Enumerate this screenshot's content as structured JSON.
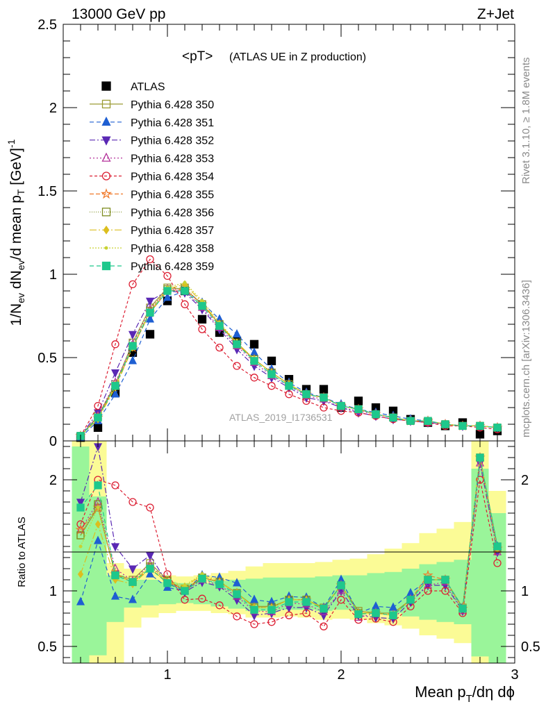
{
  "header": {
    "left": "13000 GeV pp",
    "right": "Z+Jet",
    "plot_title": "<pT>",
    "plot_subtitle": "(ATLAS UE in Z production)",
    "watermark": "ATLAS_2019_I1736531",
    "rivet_label": "Rivet 3.1.10, ≥ 1.8M events",
    "mcplots_label": "mcplots.cern.ch [arXiv:1306.3436]"
  },
  "axes": {
    "ylabel_main": "1/N_ev dN_ev/d mean p_T [GeV]^-1",
    "ylabel_ratio": "Ratio to ATLAS",
    "xlabel": "Mean p_T/dη dϕ"
  },
  "colors": {
    "band_inner": "#9af59a",
    "band_outer": "#fbfb96"
  },
  "chart_data": [
    {
      "type": "scatter",
      "panel": "main",
      "xlim": [
        0.4,
        3.0
      ],
      "ylim": [
        0,
        2.5
      ],
      "yticks": [
        "0",
        "0.5",
        "1",
        "1.5",
        "2",
        "2.5"
      ],
      "x": [
        0.5,
        0.6,
        0.7,
        0.8,
        0.9,
        1.0,
        1.1,
        1.2,
        1.3,
        1.4,
        1.5,
        1.6,
        1.7,
        1.8,
        1.9,
        2.0,
        2.1,
        2.2,
        2.3,
        2.4,
        2.5,
        2.6,
        2.7,
        2.8,
        2.9
      ],
      "series": [
        {
          "name": "ATLAS",
          "color": "#000000",
          "marker": "fsquare",
          "dash": "none",
          "values": [
            0.02,
            0.08,
            0.29,
            0.53,
            0.64,
            0.84,
            0.9,
            0.73,
            0.65,
            0.6,
            0.58,
            0.48,
            0.37,
            0.31,
            0.31,
            0.2,
            0.24,
            0.2,
            0.18,
            0.13,
            0.11,
            0.09,
            0.11,
            0.04,
            0.06
          ]
        },
        {
          "name": "Pythia 6.428 350",
          "color": "#9b9b32",
          "marker": "osquare",
          "dash": "solid",
          "values": [
            0.03,
            0.15,
            0.34,
            0.59,
            0.8,
            0.92,
            0.91,
            0.82,
            0.7,
            0.58,
            0.49,
            0.41,
            0.34,
            0.28,
            0.26,
            0.21,
            0.19,
            0.16,
            0.14,
            0.12,
            0.12,
            0.1,
            0.09,
            0.09,
            0.08
          ]
        },
        {
          "name": "Pythia 6.428 351",
          "color": "#1e5fd2",
          "marker": "ftriup",
          "dash": "6,4",
          "values": [
            0.02,
            0.12,
            0.28,
            0.48,
            0.73,
            0.86,
            0.9,
            0.83,
            0.73,
            0.64,
            0.53,
            0.43,
            0.35,
            0.29,
            0.26,
            0.22,
            0.19,
            0.17,
            0.15,
            0.13,
            0.12,
            0.1,
            0.09,
            0.09,
            0.08
          ]
        },
        {
          "name": "Pythia 6.428 352",
          "color": "#5a28b4",
          "marker": "ftridown",
          "dash": "8,3,2,3",
          "values": [
            0.03,
            0.17,
            0.41,
            0.64,
            0.84,
            0.9,
            0.89,
            0.79,
            0.67,
            0.55,
            0.45,
            0.38,
            0.32,
            0.26,
            0.24,
            0.2,
            0.17,
            0.15,
            0.13,
            0.12,
            0.11,
            0.1,
            0.09,
            0.09,
            0.08
          ]
        },
        {
          "name": "Pythia 6.428 353",
          "color": "#b4329b",
          "marker": "otriup",
          "dash": "2,3",
          "values": [
            0.03,
            0.15,
            0.35,
            0.58,
            0.79,
            0.91,
            0.9,
            0.8,
            0.68,
            0.57,
            0.47,
            0.39,
            0.33,
            0.27,
            0.25,
            0.2,
            0.18,
            0.16,
            0.14,
            0.12,
            0.11,
            0.1,
            0.09,
            0.09,
            0.08
          ]
        },
        {
          "name": "Pythia 6.428 354",
          "color": "#dc1e32",
          "marker": "ocircle",
          "dash": "4,3",
          "values": [
            0.03,
            0.21,
            0.58,
            0.94,
            1.09,
            0.99,
            0.82,
            0.67,
            0.56,
            0.45,
            0.38,
            0.33,
            0.28,
            0.24,
            0.2,
            0.18,
            0.17,
            0.15,
            0.13,
            0.12,
            0.11,
            0.09,
            0.09,
            0.08,
            0.07
          ]
        },
        {
          "name": "Pythia 6.428 355",
          "color": "#f07828",
          "marker": "ostar",
          "dash": "6,3",
          "values": [
            0.03,
            0.14,
            0.33,
            0.56,
            0.77,
            0.9,
            0.91,
            0.82,
            0.7,
            0.58,
            0.49,
            0.41,
            0.34,
            0.28,
            0.26,
            0.21,
            0.19,
            0.16,
            0.14,
            0.12,
            0.12,
            0.1,
            0.09,
            0.09,
            0.08
          ]
        },
        {
          "name": "Pythia 6.428 356",
          "color": "#7d8c1e",
          "marker": "osquare",
          "dash": "1,2",
          "values": [
            0.03,
            0.14,
            0.33,
            0.57,
            0.78,
            0.91,
            0.92,
            0.82,
            0.7,
            0.59,
            0.49,
            0.41,
            0.34,
            0.28,
            0.26,
            0.21,
            0.19,
            0.16,
            0.14,
            0.12,
            0.12,
            0.1,
            0.09,
            0.09,
            0.08
          ]
        },
        {
          "name": "Pythia 6.428 357",
          "color": "#dcbe1e",
          "marker": "fdiamond",
          "dash": "10,3,2,3",
          "values": [
            0.03,
            0.13,
            0.32,
            0.56,
            0.77,
            0.91,
            0.94,
            0.83,
            0.7,
            0.59,
            0.49,
            0.41,
            0.34,
            0.28,
            0.26,
            0.21,
            0.19,
            0.16,
            0.14,
            0.12,
            0.12,
            0.1,
            0.09,
            0.09,
            0.08
          ]
        },
        {
          "name": "Pythia 6.428 358",
          "color": "#c8d232",
          "marker": "fdot",
          "dash": "2,2",
          "values": [
            0.03,
            0.14,
            0.33,
            0.57,
            0.78,
            0.92,
            0.95,
            0.84,
            0.71,
            0.59,
            0.49,
            0.41,
            0.34,
            0.28,
            0.26,
            0.21,
            0.19,
            0.16,
            0.14,
            0.12,
            0.12,
            0.1,
            0.09,
            0.09,
            0.08
          ]
        },
        {
          "name": "Pythia 6.428 359",
          "color": "#1ec88c",
          "marker": "fsquare",
          "dash": "6,4",
          "values": [
            0.03,
            0.14,
            0.33,
            0.57,
            0.77,
            0.9,
            0.9,
            0.81,
            0.69,
            0.58,
            0.48,
            0.4,
            0.33,
            0.28,
            0.26,
            0.21,
            0.19,
            0.16,
            0.14,
            0.12,
            0.12,
            0.1,
            0.09,
            0.09,
            0.08
          ]
        }
      ]
    },
    {
      "type": "scatter",
      "panel": "ratio",
      "xlim": [
        0.4,
        3.0
      ],
      "ylim": [
        0.35,
        2.35
      ],
      "yticks": [
        "0.5",
        "1",
        "2"
      ],
      "xticks": [
        "1",
        "2",
        "3"
      ],
      "x": [
        0.5,
        0.6,
        0.7,
        0.8,
        0.9,
        1.0,
        1.1,
        1.2,
        1.3,
        1.4,
        1.5,
        1.6,
        1.7,
        1.8,
        1.9,
        2.0,
        2.1,
        2.2,
        2.3,
        2.4,
        2.5,
        2.6,
        2.7,
        2.8,
        2.9
      ],
      "band_edges": [
        0.45,
        0.55,
        0.65,
        0.75,
        0.85,
        0.95,
        1.05,
        1.15,
        1.25,
        1.35,
        1.45,
        1.55,
        1.65,
        1.75,
        1.85,
        1.95,
        2.05,
        2.15,
        2.25,
        2.35,
        2.45,
        2.55,
        2.65,
        2.75,
        2.85,
        2.95
      ],
      "band_inner_low": [
        0.35,
        0.42,
        0.72,
        0.85,
        0.87,
        0.88,
        0.89,
        0.88,
        0.86,
        0.84,
        0.82,
        0.82,
        0.83,
        0.83,
        0.82,
        0.83,
        0.82,
        0.8,
        0.8,
        0.77,
        0.74,
        0.72,
        0.7,
        0.41,
        0.35
      ],
      "band_inner_high": [
        2.3,
        1.85,
        1.14,
        1.1,
        1.1,
        1.08,
        1.07,
        1.07,
        1.09,
        1.1,
        1.11,
        1.12,
        1.12,
        1.12,
        1.13,
        1.14,
        1.14,
        1.16,
        1.17,
        1.2,
        1.24,
        1.26,
        1.28,
        2.1,
        1.7
      ],
      "band_outer_low": [
        0.35,
        0.35,
        0.35,
        0.67,
        0.76,
        0.8,
        0.82,
        0.82,
        0.8,
        0.79,
        0.76,
        0.76,
        0.77,
        0.76,
        0.74,
        0.75,
        0.74,
        0.71,
        0.69,
        0.66,
        0.6,
        0.57,
        0.53,
        0.35,
        0.35
      ],
      "band_outer_high": [
        2.35,
        2.35,
        1.25,
        1.2,
        1.18,
        1.14,
        1.13,
        1.14,
        1.16,
        1.18,
        1.22,
        1.25,
        1.25,
        1.25,
        1.26,
        1.28,
        1.29,
        1.33,
        1.38,
        1.43,
        1.52,
        1.56,
        1.62,
        2.35,
        1.9
      ],
      "series": [
        {
          "name": "Pythia 6.428 350",
          "values": [
            1.5,
            1.75,
            1.15,
            1.1,
            1.25,
            1.1,
            1.0,
            1.12,
            1.08,
            0.98,
            0.86,
            0.86,
            0.92,
            0.92,
            0.85,
            1.05,
            0.82,
            0.8,
            0.8,
            0.92,
            1.1,
            1.1,
            0.85,
            2.2,
            1.4
          ]
        },
        {
          "name": "Pythia 6.428 351",
          "values": [
            0.9,
            1.45,
            0.95,
            0.92,
            1.15,
            1.03,
            1.0,
            1.14,
            1.12,
            1.07,
            0.92,
            0.9,
            0.95,
            0.94,
            0.85,
            1.1,
            0.8,
            0.86,
            0.85,
            0.98,
            1.1,
            1.1,
            0.85,
            2.2,
            1.4
          ]
        },
        {
          "name": "Pythia 6.428 352",
          "values": [
            1.8,
            2.3,
            1.4,
            1.2,
            1.32,
            1.07,
            0.99,
            1.08,
            1.04,
            0.92,
            0.78,
            0.8,
            0.85,
            0.85,
            0.78,
            1.0,
            0.78,
            0.76,
            0.75,
            0.9,
            1.05,
            1.05,
            0.82,
            2.15,
            1.35
          ]
        },
        {
          "name": "Pythia 6.428 353",
          "values": [
            1.55,
            1.8,
            1.2,
            1.09,
            1.24,
            1.08,
            1.0,
            1.1,
            1.05,
            0.95,
            0.82,
            0.81,
            0.89,
            0.88,
            0.81,
            1.0,
            0.76,
            0.8,
            0.78,
            0.92,
            1.05,
            1.08,
            0.82,
            2.15,
            1.35
          ]
        },
        {
          "name": "Pythia 6.428 354",
          "values": [
            1.6,
            2.0,
            1.95,
            1.8,
            1.75,
            1.15,
            0.92,
            0.93,
            0.87,
            0.77,
            0.7,
            0.72,
            0.78,
            0.8,
            0.68,
            0.92,
            0.74,
            0.75,
            0.72,
            0.86,
            1.0,
            1.0,
            0.8,
            2.0,
            1.25
          ]
        },
        {
          "name": "Pythia 6.428 355",
          "values": [
            1.55,
            1.75,
            1.15,
            1.08,
            1.2,
            1.08,
            1.01,
            1.12,
            1.08,
            0.98,
            0.85,
            0.85,
            0.92,
            0.92,
            0.84,
            1.05,
            0.8,
            0.8,
            0.78,
            0.92,
            1.14,
            1.1,
            0.84,
            2.2,
            1.38
          ]
        },
        {
          "name": "Pythia 6.428 356",
          "values": [
            1.5,
            1.78,
            1.14,
            1.08,
            1.22,
            1.09,
            1.02,
            1.12,
            1.08,
            0.98,
            0.85,
            0.85,
            0.92,
            0.92,
            0.84,
            1.05,
            0.8,
            0.8,
            0.78,
            0.92,
            1.1,
            1.1,
            0.84,
            2.2,
            1.38
          ]
        },
        {
          "name": "Pythia 6.428 357",
          "values": [
            1.15,
            1.6,
            1.1,
            1.06,
            1.2,
            1.08,
            1.04,
            1.14,
            1.08,
            0.98,
            0.85,
            0.85,
            0.92,
            0.92,
            0.84,
            1.05,
            0.8,
            0.8,
            0.78,
            0.92,
            1.1,
            1.1,
            0.84,
            2.2,
            1.38
          ]
        },
        {
          "name": "Pythia 6.428 358",
          "values": [
            1.4,
            1.75,
            1.14,
            1.08,
            1.22,
            1.09,
            1.05,
            1.15,
            1.09,
            0.98,
            0.85,
            0.85,
            0.92,
            0.92,
            0.84,
            1.05,
            0.8,
            0.8,
            0.78,
            0.92,
            1.1,
            1.1,
            0.84,
            2.2,
            1.38
          ]
        },
        {
          "name": "Pythia 6.428 359",
          "values": [
            1.75,
            1.95,
            1.14,
            1.08,
            1.2,
            1.07,
            1.0,
            1.11,
            1.06,
            0.97,
            0.83,
            0.83,
            0.9,
            0.9,
            0.84,
            1.05,
            0.79,
            0.8,
            0.78,
            0.92,
            1.1,
            1.1,
            0.84,
            2.2,
            1.4
          ]
        }
      ]
    }
  ]
}
